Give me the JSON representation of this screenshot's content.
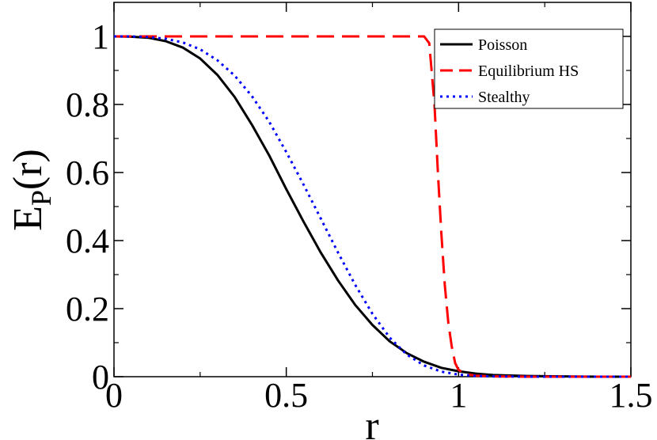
{
  "chart_data": {
    "type": "line",
    "title": "",
    "xlabel": "r",
    "ylabel_main": "E",
    "ylabel_sub": "P",
    "ylabel_tail": "(r)",
    "xlim": [
      0,
      1.5
    ],
    "ylim": [
      0,
      1.1
    ],
    "xticks": [
      0,
      0.5,
      1,
      1.5
    ],
    "xtick_labels": [
      "0",
      "0.5",
      "1",
      "1.5"
    ],
    "yticks": [
      0,
      0.2,
      0.4,
      0.6,
      0.8,
      1
    ],
    "ytick_labels": [
      "0",
      "0.2",
      "0.4",
      "0.6",
      "0.8",
      "1"
    ],
    "grid": false,
    "legend_position": "top-right",
    "series": [
      {
        "name": "Poisson",
        "color": "#000000",
        "style": "solid",
        "x": [
          0,
          0.05,
          0.1,
          0.15,
          0.2,
          0.25,
          0.3,
          0.35,
          0.4,
          0.45,
          0.5,
          0.55,
          0.6,
          0.65,
          0.7,
          0.75,
          0.8,
          0.85,
          0.9,
          0.95,
          1.0,
          1.05,
          1.1,
          1.2,
          1.3,
          1.4,
          1.5
        ],
        "y": [
          1.0,
          0.999,
          0.996,
          0.986,
          0.967,
          0.935,
          0.887,
          0.822,
          0.741,
          0.651,
          0.551,
          0.456,
          0.365,
          0.283,
          0.211,
          0.152,
          0.104,
          0.069,
          0.044,
          0.026,
          0.016,
          0.009,
          0.005,
          0.002,
          0.001,
          0.0,
          0.0
        ]
      },
      {
        "name": "Equilibrium HS",
        "color": "#ff0000",
        "style": "dashed",
        "x": [
          0,
          0.1,
          0.2,
          0.3,
          0.4,
          0.5,
          0.6,
          0.7,
          0.8,
          0.9,
          0.915,
          0.93,
          0.94,
          0.95,
          0.96,
          0.97,
          0.98,
          0.99,
          1.0,
          1.02,
          1.05,
          1.1,
          1.2,
          1.3,
          1.4,
          1.5
        ],
        "y": [
          1.0,
          1.0,
          1.0,
          1.0,
          1.0,
          1.0,
          1.0,
          1.0,
          1.0,
          1.0,
          0.98,
          0.8,
          0.6,
          0.42,
          0.27,
          0.16,
          0.09,
          0.04,
          0.02,
          0.008,
          0.003,
          0.001,
          0.0,
          0.0,
          0.0,
          0.0
        ]
      },
      {
        "name": "Stealthy",
        "color": "#0000ff",
        "style": "dotted",
        "x": [
          0,
          0.05,
          0.1,
          0.15,
          0.2,
          0.25,
          0.3,
          0.35,
          0.4,
          0.45,
          0.5,
          0.55,
          0.6,
          0.65,
          0.7,
          0.75,
          0.8,
          0.85,
          0.9,
          0.95,
          1.0,
          1.05,
          1.1,
          1.2,
          1.3,
          1.4,
          1.5
        ],
        "y": [
          1.0,
          1.0,
          0.998,
          0.993,
          0.982,
          0.962,
          0.93,
          0.885,
          0.825,
          0.75,
          0.66,
          0.565,
          0.465,
          0.365,
          0.27,
          0.185,
          0.115,
          0.065,
          0.033,
          0.015,
          0.006,
          0.002,
          0.001,
          0.0,
          0.0,
          0.0,
          0.0
        ]
      }
    ]
  }
}
